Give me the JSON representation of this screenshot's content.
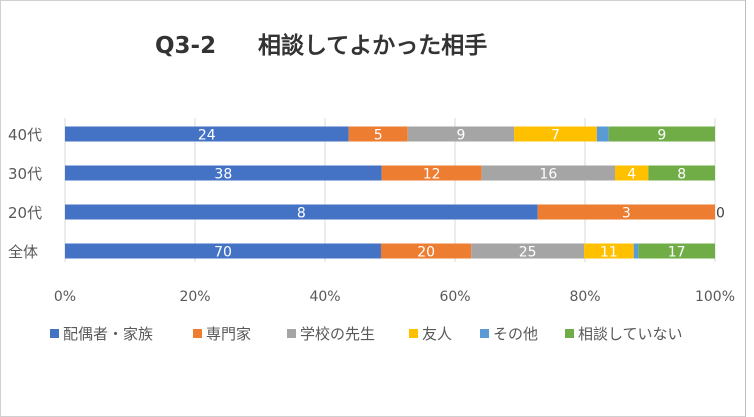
{
  "chart_data": {
    "type": "bar",
    "orientation": "horizontal",
    "stacked": "percent",
    "title_prefix": "Q3-2",
    "title_main": "相談してよかった相手",
    "categories": [
      "40代",
      "30代",
      "20代",
      "全体"
    ],
    "series": [
      {
        "name": "配偶者・家族",
        "color": "#4472C4",
        "values": [
          24,
          38,
          8,
          70
        ]
      },
      {
        "name": "専門家",
        "color": "#ED7D31",
        "values": [
          5,
          12,
          3,
          20
        ]
      },
      {
        "name": "学校の先生",
        "color": "#A5A5A5",
        "values": [
          9,
          16,
          0,
          25
        ]
      },
      {
        "name": "友人",
        "color": "#FFC000",
        "values": [
          7,
          4,
          0,
          11
        ]
      },
      {
        "name": "その他",
        "color": "#5B9BD5",
        "values": [
          1,
          0,
          0,
          1
        ]
      },
      {
        "name": "相談していない",
        "color": "#70AD47",
        "values": [
          9,
          8,
          0,
          17
        ]
      }
    ],
    "hidden_labels": [
      [
        false,
        false,
        false,
        false,
        true,
        false
      ],
      [
        false,
        false,
        false,
        false,
        true,
        false
      ],
      [
        false,
        false,
        true,
        true,
        true,
        true
      ],
      [
        false,
        false,
        false,
        false,
        true,
        false
      ]
    ],
    "zero_labels": [
      [
        false,
        false,
        false,
        false,
        false,
        false
      ],
      [
        false,
        false,
        false,
        false,
        false,
        false
      ],
      [
        false,
        false,
        true,
        false,
        false,
        false
      ],
      [
        false,
        false,
        false,
        false,
        false,
        false
      ]
    ],
    "x_ticks": [
      "0%",
      "20%",
      "40%",
      "60%",
      "80%",
      "100%"
    ],
    "xlim": [
      0,
      100
    ],
    "legend_position": "bottom"
  }
}
